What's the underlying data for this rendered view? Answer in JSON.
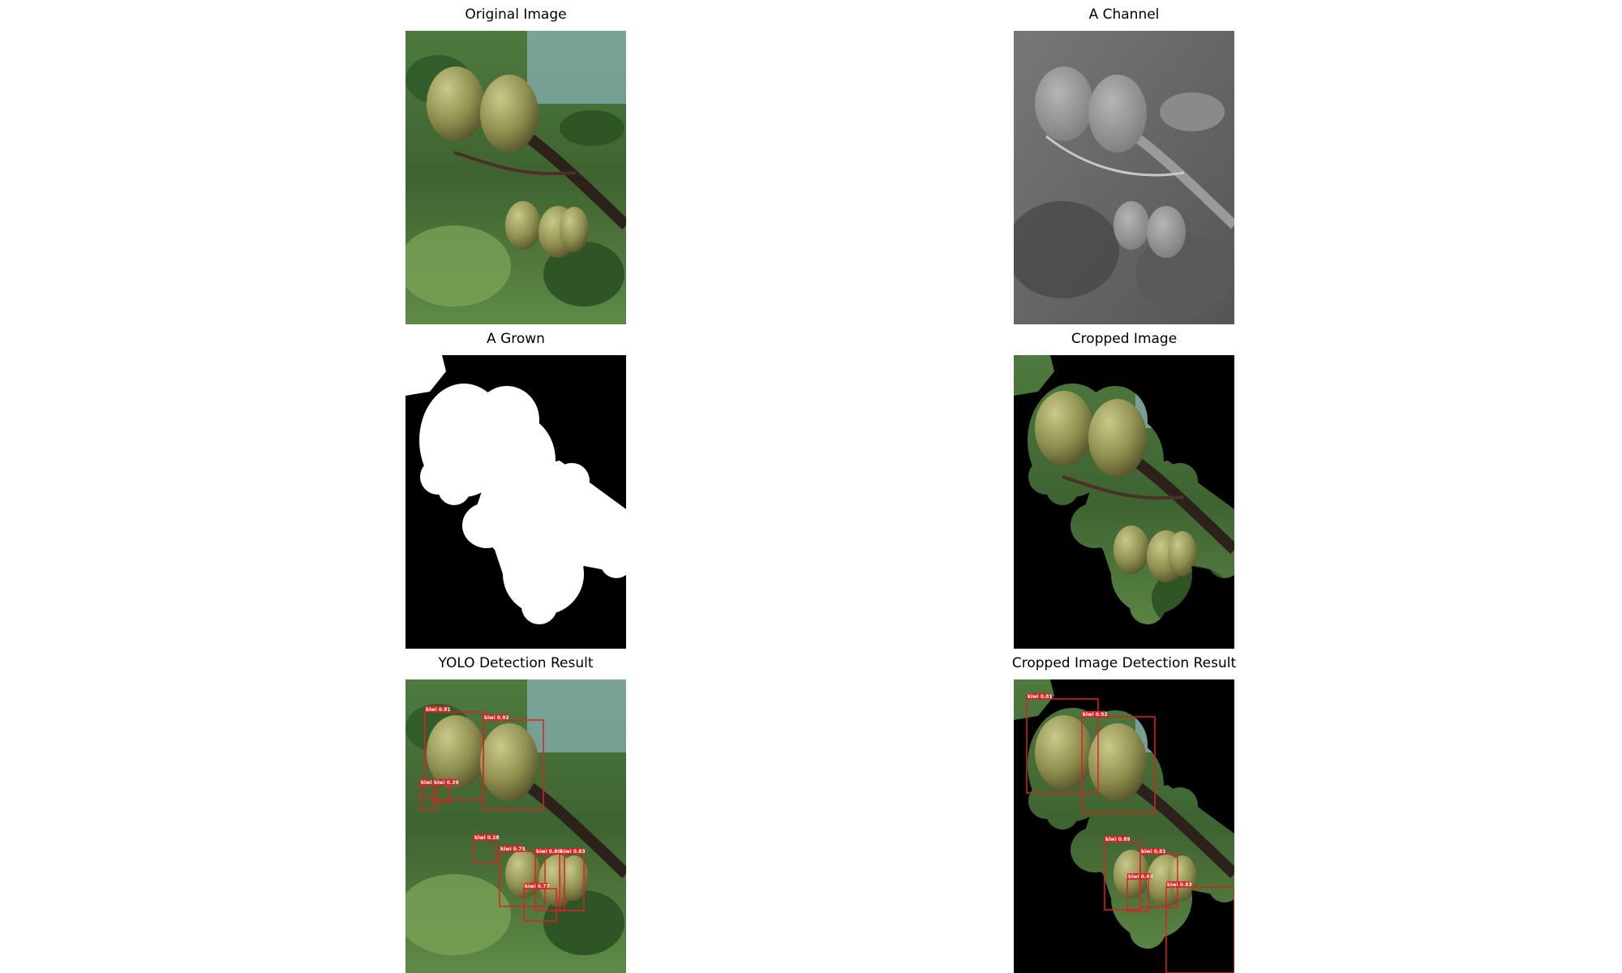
{
  "figure": {
    "panels": [
      {
        "id": "original",
        "title": "Original Image"
      },
      {
        "id": "a-channel",
        "title": "A Channel"
      },
      {
        "id": "a-grown",
        "title": "A Grown"
      },
      {
        "id": "cropped",
        "title": "Cropped Image"
      },
      {
        "id": "yolo-detection",
        "title": "YOLO Detection Result"
      },
      {
        "id": "cropped-detection",
        "title": "Cropped Image Detection Result"
      }
    ]
  },
  "detections": {
    "yolo": [
      {
        "label": "kiwi 0.81"
      },
      {
        "label": "kiwi 0.92"
      },
      {
        "label": "kiwi"
      },
      {
        "label": "kiwi 0.39"
      },
      {
        "label": "kiwi 0.28"
      },
      {
        "label": "kiwi 0.73"
      },
      {
        "label": "kiwi 0.80"
      },
      {
        "label": "kiwi 0.83"
      },
      {
        "label": "kiwi 0.77"
      }
    ],
    "cropped": [
      {
        "label": "kiwi 0.81"
      },
      {
        "label": "kiwi 0.92"
      },
      {
        "label": "kiwi 0.89"
      },
      {
        "label": "kiwi 0.81"
      },
      {
        "label": "kiwi 0.43"
      },
      {
        "label": "kiwi 0.83"
      }
    ]
  },
  "colors": {
    "box": "#e02020",
    "kiwi_fill": "#8a8a4a",
    "leaf": "#3f6b34",
    "sky": "#8fc3e0",
    "branch": "#3a2a22",
    "mask": "#ffffff",
    "background": "#000000"
  }
}
